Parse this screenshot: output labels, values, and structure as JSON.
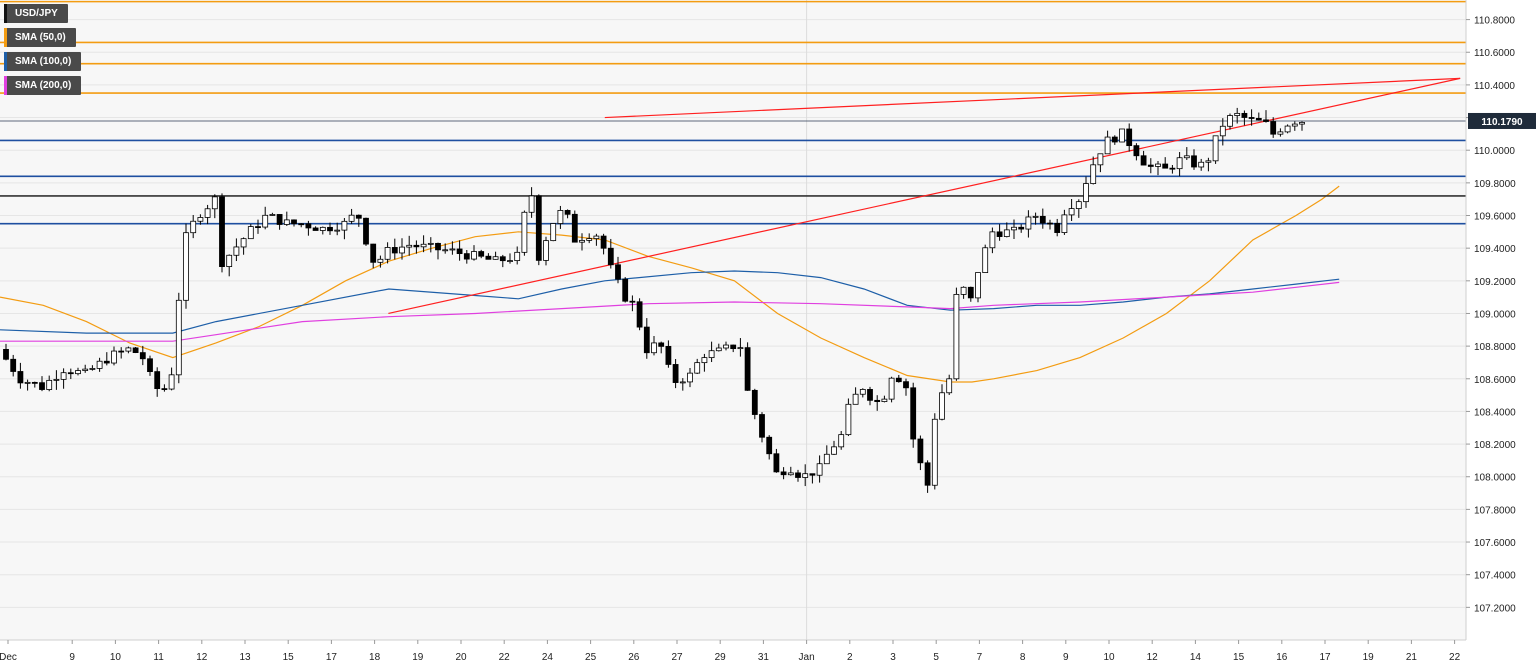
{
  "colors": {
    "background": "#f7f7f7",
    "grid": "#e6e6e6",
    "axis_text": "#222222",
    "candle_up": "#ffffff",
    "candle_down": "#000000",
    "sma50": "#f39c12",
    "sma100": "#1e5fa8",
    "sma200": "#e040e0",
    "trendline": "#ff2020",
    "resistance": "#f39c12",
    "support": "#1e4fa0",
    "level_dark": "#333333",
    "price_tag_bg": "#1f2b3a"
  },
  "legend": [
    {
      "label": "USD/JPY",
      "color": "#111111"
    },
    {
      "label": "SMA (50,0)",
      "color": "#f39c12"
    },
    {
      "label": "SMA (100,0)",
      "color": "#1e5fa8"
    },
    {
      "label": "SMA (200,0)",
      "color": "#e040e0"
    }
  ],
  "price_tag": "110.1790",
  "chart_data": {
    "type": "candlestick",
    "symbol": "USD/JPY",
    "ylim": [
      107.0,
      110.92
    ],
    "y_ticks": [
      "110.8000",
      "110.6000",
      "110.4000",
      "110.2000",
      "110.0000",
      "109.8000",
      "109.6000",
      "109.4000",
      "109.2000",
      "109.0000",
      "108.8000",
      "108.6000",
      "108.4000",
      "108.2000",
      "108.0000",
      "107.8000",
      "107.6000",
      "107.4000",
      "107.2000"
    ],
    "x_ticks": [
      "Dec",
      "9",
      "10",
      "11",
      "12",
      "13",
      "15",
      "17",
      "18",
      "19",
      "20",
      "22",
      "24",
      "25",
      "26",
      "27",
      "29",
      "31",
      "Jan",
      "2",
      "3",
      "5",
      "7",
      "8",
      "9",
      "10",
      "12",
      "14",
      "15",
      "16",
      "17",
      "19",
      "21",
      "22"
    ],
    "last_price": 110.179,
    "horizontal_levels": [
      {
        "price": 110.91,
        "kind": "resistance"
      },
      {
        "price": 110.66,
        "kind": "resistance"
      },
      {
        "price": 110.53,
        "kind": "resistance"
      },
      {
        "price": 110.35,
        "kind": "resistance"
      },
      {
        "price": 110.06,
        "kind": "support"
      },
      {
        "price": 109.84,
        "kind": "support"
      },
      {
        "price": 109.72,
        "kind": "level"
      },
      {
        "price": 109.55,
        "kind": "support"
      }
    ],
    "trendlines": [
      {
        "name": "upper",
        "from": [
          14.0,
          110.2
        ],
        "to": [
          33.8,
          110.44
        ]
      },
      {
        "name": "lower",
        "from": [
          8.99,
          109.0
        ],
        "to": [
          33.8,
          110.44
        ]
      }
    ],
    "series": [
      {
        "name": "USD/JPY",
        "kind": "candles",
        "waypoints": [
          [
            0.0,
            108.78
          ],
          [
            0.5,
            108.6
          ],
          [
            1.0,
            108.55
          ],
          [
            1.5,
            108.66
          ],
          [
            2.0,
            108.63
          ],
          [
            2.6,
            108.74
          ],
          [
            3.0,
            108.78
          ],
          [
            3.3,
            108.75
          ],
          [
            3.6,
            108.55
          ],
          [
            3.8,
            108.52
          ],
          [
            4.0,
            108.64
          ],
          [
            4.15,
            109.05
          ],
          [
            4.3,
            109.45
          ],
          [
            4.6,
            109.6
          ],
          [
            5.0,
            109.7
          ],
          [
            5.1,
            109.3
          ],
          [
            5.3,
            109.35
          ],
          [
            5.8,
            109.5
          ],
          [
            6.2,
            109.6
          ],
          [
            6.7,
            109.55
          ],
          [
            7.0,
            109.55
          ],
          [
            7.5,
            109.52
          ],
          [
            8.0,
            109.55
          ],
          [
            8.3,
            109.62
          ],
          [
            8.5,
            109.45
          ],
          [
            8.7,
            109.3
          ],
          [
            9.0,
            109.38
          ],
          [
            9.5,
            109.42
          ],
          [
            10.0,
            109.4
          ],
          [
            10.5,
            109.38
          ],
          [
            11.0,
            109.35
          ],
          [
            11.5,
            109.32
          ],
          [
            12.0,
            109.35
          ],
          [
            12.3,
            109.8
          ],
          [
            12.5,
            109.35
          ],
          [
            12.8,
            109.55
          ],
          [
            13.1,
            109.65
          ],
          [
            13.3,
            109.45
          ],
          [
            13.8,
            109.5
          ],
          [
            14.0,
            109.4
          ],
          [
            14.2,
            109.25
          ],
          [
            14.5,
            109.1
          ],
          [
            14.7,
            109.05
          ],
          [
            15.0,
            108.78
          ],
          [
            15.3,
            108.82
          ],
          [
            15.6,
            108.58
          ],
          [
            16.0,
            108.62
          ],
          [
            16.3,
            108.75
          ],
          [
            16.6,
            108.76
          ],
          [
            17.0,
            108.8
          ],
          [
            17.2,
            108.8
          ],
          [
            17.3,
            108.55
          ],
          [
            17.6,
            108.3
          ],
          [
            18.0,
            108.02
          ],
          [
            18.3,
            108.06
          ],
          [
            18.6,
            108.0
          ],
          [
            19.0,
            108.05
          ],
          [
            19.2,
            108.15
          ],
          [
            19.5,
            108.25
          ],
          [
            19.7,
            108.45
          ],
          [
            20.0,
            108.55
          ],
          [
            20.3,
            108.45
          ],
          [
            20.5,
            108.5
          ],
          [
            20.7,
            108.65
          ],
          [
            21.0,
            108.55
          ],
          [
            21.1,
            108.3
          ],
          [
            21.3,
            108.1
          ],
          [
            21.5,
            107.95
          ],
          [
            21.7,
            108.45
          ],
          [
            22.0,
            108.6
          ],
          [
            22.2,
            109.2
          ],
          [
            22.5,
            109.08
          ],
          [
            22.7,
            109.3
          ],
          [
            23.0,
            109.5
          ],
          [
            23.5,
            109.5
          ],
          [
            24.0,
            109.6
          ],
          [
            24.5,
            109.52
          ],
          [
            24.7,
            109.65
          ],
          [
            25.0,
            109.7
          ],
          [
            25.3,
            109.9
          ],
          [
            25.6,
            110.05
          ],
          [
            26.0,
            110.1
          ],
          [
            26.3,
            110.0
          ],
          [
            26.6,
            109.9
          ],
          [
            27.0,
            109.88
          ],
          [
            27.4,
            109.95
          ],
          [
            27.8,
            109.9
          ],
          [
            28.0,
            109.95
          ],
          [
            28.3,
            110.15
          ],
          [
            28.6,
            110.22
          ],
          [
            29.0,
            110.18
          ],
          [
            29.3,
            110.17
          ],
          [
            29.5,
            110.1
          ],
          [
            29.8,
            110.16
          ],
          [
            30.0,
            110.18
          ]
        ]
      },
      {
        "name": "SMA (50,0)",
        "points": [
          [
            0.0,
            109.1
          ],
          [
            1.0,
            109.05
          ],
          [
            2.0,
            108.95
          ],
          [
            3.0,
            108.82
          ],
          [
            4.0,
            108.73
          ],
          [
            5.0,
            108.82
          ],
          [
            6.0,
            108.92
          ],
          [
            7.0,
            109.05
          ],
          [
            8.0,
            109.2
          ],
          [
            9.0,
            109.32
          ],
          [
            10.0,
            109.4
          ],
          [
            11.0,
            109.47
          ],
          [
            12.0,
            109.5
          ],
          [
            13.0,
            109.48
          ],
          [
            14.0,
            109.45
          ],
          [
            15.0,
            109.35
          ],
          [
            16.0,
            109.28
          ],
          [
            17.0,
            109.2
          ],
          [
            18.0,
            109.0
          ],
          [
            19.0,
            108.85
          ],
          [
            20.0,
            108.73
          ],
          [
            21.0,
            108.62
          ],
          [
            22.0,
            108.58
          ],
          [
            22.5,
            108.58
          ],
          [
            23.0,
            108.6
          ],
          [
            24.0,
            108.65
          ],
          [
            25.0,
            108.73
          ],
          [
            26.0,
            108.85
          ],
          [
            27.0,
            109.0
          ],
          [
            28.0,
            109.2
          ],
          [
            29.0,
            109.45
          ],
          [
            30.0,
            109.6
          ],
          [
            30.6,
            109.7
          ],
          [
            31.0,
            109.78
          ]
        ]
      },
      {
        "name": "SMA (100,0)",
        "points": [
          [
            0.0,
            108.9
          ],
          [
            2.0,
            108.88
          ],
          [
            4.0,
            108.88
          ],
          [
            5.0,
            108.95
          ],
          [
            7.0,
            109.05
          ],
          [
            9.0,
            109.15
          ],
          [
            11.0,
            109.11
          ],
          [
            12.0,
            109.09
          ],
          [
            13.0,
            109.15
          ],
          [
            14.0,
            109.2
          ],
          [
            16.0,
            109.25
          ],
          [
            17.0,
            109.26
          ],
          [
            18.0,
            109.25
          ],
          [
            19.0,
            109.22
          ],
          [
            20.0,
            109.15
          ],
          [
            21.0,
            109.05
          ],
          [
            22.0,
            109.02
          ],
          [
            23.0,
            109.03
          ],
          [
            24.0,
            109.05
          ],
          [
            25.0,
            109.05
          ],
          [
            26.0,
            109.07
          ],
          [
            27.0,
            109.1
          ],
          [
            28.0,
            109.12
          ],
          [
            29.0,
            109.15
          ],
          [
            30.0,
            109.18
          ],
          [
            31.0,
            109.21
          ]
        ]
      },
      {
        "name": "SMA (200,0)",
        "points": [
          [
            0.0,
            108.83
          ],
          [
            2.0,
            108.83
          ],
          [
            4.0,
            108.83
          ],
          [
            5.0,
            108.87
          ],
          [
            7.0,
            108.95
          ],
          [
            9.0,
            108.98
          ],
          [
            11.0,
            109.0
          ],
          [
            13.0,
            109.03
          ],
          [
            15.0,
            109.06
          ],
          [
            17.0,
            109.07
          ],
          [
            19.0,
            109.06
          ],
          [
            21.0,
            109.04
          ],
          [
            22.0,
            109.03
          ],
          [
            23.0,
            109.05
          ],
          [
            25.0,
            109.07
          ],
          [
            27.0,
            109.1
          ],
          [
            29.0,
            109.13
          ],
          [
            30.0,
            109.16
          ],
          [
            31.0,
            109.19
          ]
        ]
      }
    ]
  }
}
